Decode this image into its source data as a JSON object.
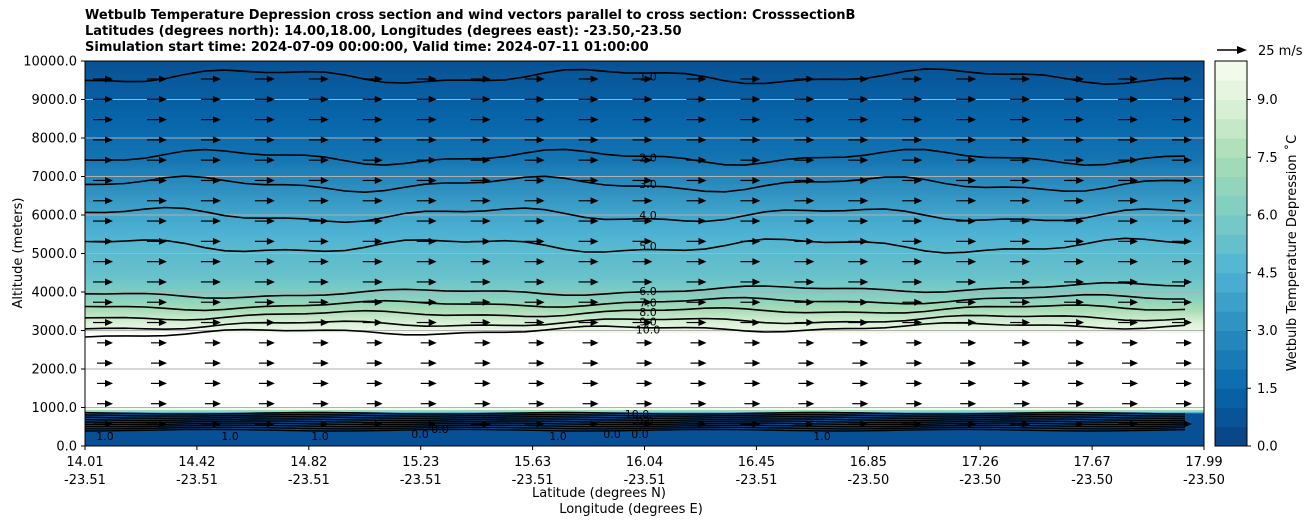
{
  "titles": {
    "line1": "Wetbulb Temperature Depression cross section and wind vectors parallel to cross section: CrosssectionB",
    "line2": "Latitudes (degrees north): 14.00,18.00, Longitudes (degrees east): -23.50,-23.50",
    "line3": "Simulation start time: 2024-07-09 00:00:00, Valid time: 2024-07-11 01:00:00"
  },
  "chart_data": {
    "type": "heatmap",
    "title": "Wetbulb Temperature Depression cross section and wind vectors parallel to cross section: CrosssectionB",
    "ylabel": "Altitude (meters)",
    "xlabel_lat": "Latitude (degrees N)",
    "xlabel_lon": "Longitude (degrees E)",
    "ylim": [
      0,
      10000
    ],
    "y_ticks": [
      "0.0",
      "1000.0",
      "2000.0",
      "3000.0",
      "4000.0",
      "5000.0",
      "6000.0",
      "7000.0",
      "8000.0",
      "9000.0",
      "10000.0"
    ],
    "x_ticks_lat": [
      "14.01",
      "14.42",
      "14.82",
      "15.23",
      "15.63",
      "16.04",
      "16.45",
      "16.85",
      "17.26",
      "17.67",
      "17.99"
    ],
    "x_ticks_lon": [
      "-23.51",
      "-23.51",
      "-23.51",
      "-23.51",
      "-23.51",
      "-23.51",
      "-23.51",
      "-23.50",
      "-23.50",
      "-23.50",
      "-23.50"
    ],
    "grid": "horizontal",
    "colorbar": {
      "label": "Wetbulb Temperature Depression ˚C",
      "range": [
        0,
        10
      ],
      "ticks": [
        "0.0",
        "1.5",
        "3.0",
        "4.5",
        "6.0",
        "7.5",
        "9.0"
      ],
      "colormap": "GnBu_r"
    },
    "wind_key": {
      "label": "25 m/s"
    },
    "contour_lines": [
      {
        "level": 1.0,
        "altitude_m": 9600,
        "label": "1.0"
      },
      {
        "level": 2.0,
        "altitude_m": 7500,
        "label": "2.0"
      },
      {
        "level": 3.0,
        "altitude_m": 6800,
        "label": "3.0"
      },
      {
        "level": 4.0,
        "altitude_m": 6000,
        "label": "4.0"
      },
      {
        "level": 5.0,
        "altitude_m": 5200,
        "label": "5.0"
      },
      {
        "level": 6.0,
        "altitude_m": 3900,
        "label": "6.0"
      },
      {
        "level": 7.0,
        "altitude_m": 3600,
        "label": "7.0"
      },
      {
        "level": 8.0,
        "altitude_m": 3350,
        "label": "8.0"
      },
      {
        "level": 9.0,
        "altitude_m": 3100,
        "label": "9.0"
      },
      {
        "level": 10.0,
        "altitude_m": 2900,
        "label": "10.0"
      }
    ],
    "surface_labels": [
      "1.0",
      "1.0",
      "1.0",
      "0.0",
      "0.0",
      "1.0",
      "0.0",
      "0.0",
      "0.0",
      "1.0",
      "10.0"
    ]
  }
}
